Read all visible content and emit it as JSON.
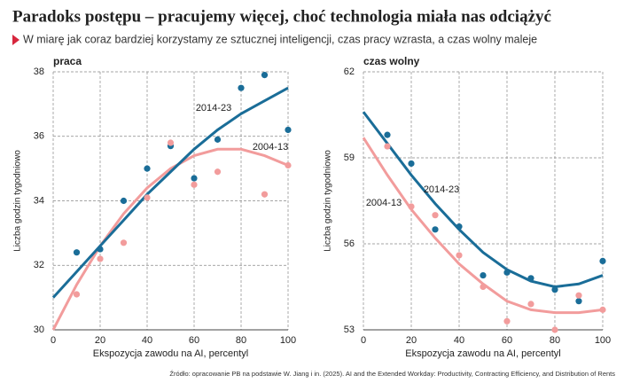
{
  "header": {
    "title": "Paradoks postępu – pracujemy więcej, choć technologia miała nas odciążyć",
    "subtitle": "W miarę jak coraz bardziej korzystamy ze sztucznej inteligencji, czas pracy wzrasta, a czas wolny maleje",
    "source": "Źródło: opracowanie PB na podstawie W. Jiang i in. (2025). AI and the Extended Workday: Productivity, Contracting Efficiency, and Distribution of Rents"
  },
  "chart_data": [
    {
      "type": "scatter",
      "title": "praca",
      "xlabel": "Ekspozycja zawodu na AI, percentyl",
      "ylabel": "Liczba godzin tygodniowo",
      "x": [
        10,
        20,
        30,
        40,
        50,
        60,
        70,
        80,
        90,
        100
      ],
      "xlim": [
        0,
        100
      ],
      "xticks": [
        0,
        20,
        40,
        60,
        80,
        100
      ],
      "ylim": [
        30,
        38
      ],
      "yticks": [
        30,
        32,
        34,
        36,
        38
      ],
      "grid": true,
      "series": [
        {
          "name": "2014-23",
          "color": "#1a6d98",
          "values": [
            32.4,
            32.5,
            34.0,
            35.0,
            35.7,
            34.7,
            35.9,
            37.5,
            37.9,
            36.2
          ],
          "fit_x": [
            0,
            10,
            20,
            30,
            40,
            50,
            60,
            70,
            80,
            90,
            100
          ],
          "fit": [
            31.0,
            31.8,
            32.6,
            33.4,
            34.2,
            34.9,
            35.6,
            36.2,
            36.7,
            37.1,
            37.5
          ]
        },
        {
          "name": "2004-13",
          "color": "#f29c9c",
          "values": [
            31.1,
            32.2,
            32.7,
            34.1,
            35.8,
            34.5,
            34.9,
            null,
            34.2,
            35.1
          ],
          "fit_x": [
            0,
            10,
            20,
            30,
            40,
            50,
            60,
            70,
            80,
            90,
            100
          ],
          "fit": [
            30.0,
            31.4,
            32.6,
            33.6,
            34.4,
            35.0,
            35.4,
            35.6,
            35.6,
            35.4,
            35.1
          ]
        }
      ]
    },
    {
      "type": "scatter",
      "title": "czas wolny",
      "xlabel": "Ekspozycja zawodu na AI, percentyl",
      "ylabel": "Liczba godzin tygodniowo",
      "x": [
        10,
        20,
        30,
        40,
        50,
        60,
        70,
        80,
        90,
        100
      ],
      "xlim": [
        0,
        100
      ],
      "xticks": [
        0,
        20,
        40,
        60,
        80,
        100
      ],
      "ylim": [
        53,
        62
      ],
      "yticks": [
        53,
        56,
        59,
        62
      ],
      "grid": true,
      "series": [
        {
          "name": "2014-23",
          "color": "#1a6d98",
          "values": [
            59.8,
            58.8,
            56.5,
            56.6,
            54.9,
            55.0,
            54.8,
            54.4,
            54.0,
            55.4
          ],
          "fit_x": [
            0,
            10,
            20,
            30,
            40,
            50,
            60,
            70,
            80,
            90,
            100
          ],
          "fit": [
            60.6,
            59.5,
            58.4,
            57.4,
            56.5,
            55.7,
            55.1,
            54.7,
            54.5,
            54.6,
            54.9
          ]
        },
        {
          "name": "2004-13",
          "color": "#f29c9c",
          "values": [
            59.4,
            57.3,
            57.0,
            55.6,
            54.5,
            53.3,
            53.9,
            53.0,
            54.2,
            53.7
          ],
          "fit_x": [
            0,
            10,
            20,
            30,
            40,
            50,
            60,
            70,
            80,
            90,
            100
          ],
          "fit": [
            59.7,
            58.4,
            57.2,
            56.2,
            55.3,
            54.6,
            54.0,
            53.7,
            53.6,
            53.6,
            53.7
          ]
        }
      ]
    }
  ]
}
